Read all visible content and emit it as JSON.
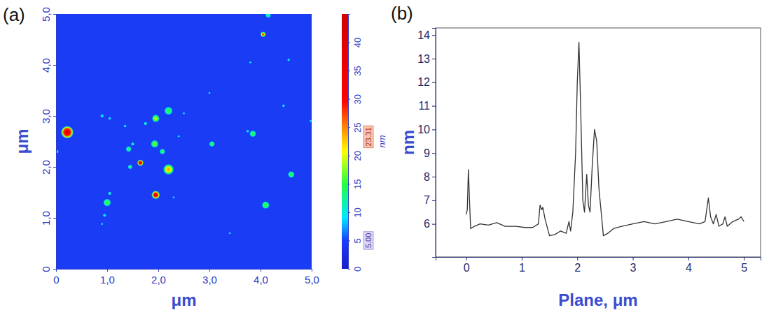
{
  "chart_data": [
    {
      "type": "heatmap",
      "panel": "(a)",
      "x_label": "μm",
      "y_label": "μm",
      "xlim": [
        0,
        5
      ],
      "ylim": [
        0,
        5
      ],
      "xticks": [
        0,
        {
          "value": 1,
          "label": "1,0"
        },
        {
          "value": 2,
          "label": "2,0"
        },
        {
          "value": 3,
          "label": "3,0"
        },
        {
          "value": 4,
          "label": "4,0"
        },
        {
          "value": 5,
          "label": "5,0"
        }
      ],
      "yticks": [
        0,
        {
          "value": 1,
          "label": "1,0"
        },
        {
          "value": 2,
          "label": "2,0"
        },
        {
          "value": 3,
          "label": "3,0"
        },
        {
          "value": 4,
          "label": "4,0"
        },
        {
          "value": 5,
          "label": "5,0"
        }
      ],
      "features": {
        "x": [
          0.22,
          0.02,
          1.65,
          1.95,
          2.2,
          1.95,
          2.2,
          1.93,
          2.08,
          1.42,
          1.45,
          1.0,
          1.05,
          0.95,
          0.9,
          1.05,
          1.35,
          1.5,
          1.75,
          3.05,
          3.0,
          3.85,
          3.75,
          4.1,
          4.6,
          4.05,
          4.15,
          4.45,
          4.55,
          3.8,
          3.4,
          2.5,
          2.4,
          2.3,
          0.9,
          4.98
        ],
        "y": [
          2.68,
          2.3,
          2.08,
          1.45,
          1.95,
          2.95,
          3.1,
          2.45,
          2.3,
          2.35,
          2.0,
          1.3,
          1.48,
          1.05,
          3.0,
          2.95,
          2.8,
          2.45,
          2.85,
          2.45,
          3.45,
          2.65,
          2.7,
          1.25,
          1.85,
          4.6,
          4.98,
          3.2,
          4.1,
          4.05,
          0.7,
          3.05,
          2.6,
          1.4,
          0.88,
          2.9
        ],
        "heights": [
          43,
          12,
          40,
          38,
          25,
          20,
          15,
          18,
          15,
          14,
          14,
          16,
          12,
          10,
          10,
          10,
          10,
          12,
          12,
          15,
          9,
          15,
          10,
          16,
          15,
          30,
          12,
          10,
          10,
          9,
          9,
          9,
          9,
          10,
          10,
          9
        ],
        "diameters": [
          0.24,
          0.06,
          0.12,
          0.16,
          0.2,
          0.14,
          0.15,
          0.14,
          0.1,
          0.1,
          0.08,
          0.14,
          0.06,
          0.06,
          0.06,
          0.05,
          0.05,
          0.06,
          0.06,
          0.1,
          0.04,
          0.12,
          0.05,
          0.14,
          0.12,
          0.1,
          0.1,
          0.05,
          0.05,
          0.04,
          0.04,
          0.04,
          0.04,
          0.04,
          0.04,
          0.04
        ]
      },
      "colorbar": {
        "label": "nm",
        "range": [
          0,
          45
        ],
        "ticks": [
          0,
          5,
          10,
          15,
          20,
          25,
          30,
          35,
          40
        ],
        "markers": [
          {
            "value": 23.31,
            "label": "23.31"
          },
          {
            "value": 5,
            "label": "5.00"
          }
        ]
      }
    },
    {
      "type": "line",
      "panel": "(b)",
      "x_label": "Plane, μm",
      "y_label": "nm",
      "color": "#333333",
      "xlim": [
        -0.55,
        5.3
      ],
      "ylim": [
        4.6,
        14.3
      ],
      "xticks": [
        0,
        1,
        2,
        3,
        4,
        5
      ],
      "yticks": [
        6,
        7,
        8,
        9,
        10,
        11,
        12,
        13,
        14
      ],
      "x": [
        0,
        0.02,
        0.04,
        0.06,
        0.08,
        0.15,
        0.25,
        0.4,
        0.55,
        0.7,
        0.9,
        1.05,
        1.2,
        1.3,
        1.33,
        1.36,
        1.38,
        1.42,
        1.5,
        1.6,
        1.7,
        1.8,
        1.85,
        1.88,
        1.92,
        1.97,
        2.0,
        2.03,
        2.06,
        2.1,
        2.13,
        2.17,
        2.2,
        2.23,
        2.27,
        2.31,
        2.35,
        2.39,
        2.43,
        2.47,
        2.55,
        2.65,
        2.8,
        3.0,
        3.2,
        3.4,
        3.6,
        3.8,
        4.0,
        4.2,
        4.3,
        4.36,
        4.4,
        4.45,
        4.5,
        4.55,
        4.62,
        4.66,
        4.7,
        4.8,
        4.9,
        4.95,
        5.0
      ],
      "values": [
        6.4,
        6.6,
        8.3,
        7.0,
        5.8,
        5.9,
        6.0,
        5.95,
        6.05,
        5.9,
        5.9,
        5.85,
        5.85,
        6.0,
        6.8,
        6.6,
        6.7,
        6.2,
        5.5,
        5.55,
        5.7,
        5.6,
        6.1,
        5.7,
        6.5,
        9.0,
        12.0,
        13.7,
        11.0,
        7.0,
        6.5,
        8.1,
        6.8,
        6.5,
        8.5,
        10.0,
        9.5,
        7.5,
        6.5,
        5.5,
        5.6,
        5.8,
        5.9,
        6.0,
        6.1,
        6.0,
        6.1,
        6.2,
        6.1,
        6.0,
        6.1,
        7.1,
        6.3,
        6.0,
        6.4,
        5.9,
        6.0,
        6.3,
        5.9,
        6.1,
        6.2,
        6.3,
        6.1
      ]
    }
  ]
}
